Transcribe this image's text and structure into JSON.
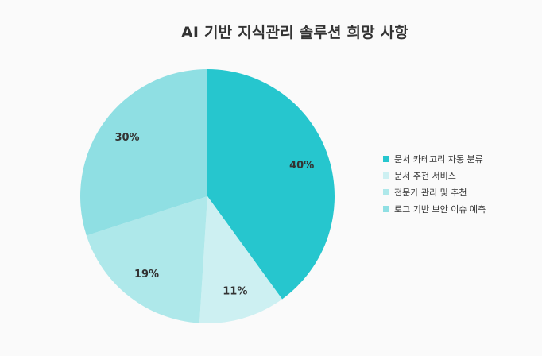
{
  "chart_data": {
    "type": "pie",
    "title": "AI 기반 지식관리 솔루션 희망 사항",
    "categories": [
      "문서 카테고리 자동 분류",
      "문서 추천 서비스",
      "전문가 관리 및 추천",
      "로그 기반 보안 이슈 예측"
    ],
    "values": [
      40,
      11,
      19,
      30
    ],
    "value_labels": [
      "40%",
      "11%",
      "19%",
      "30%"
    ],
    "colors": [
      "#26c6ce",
      "#cdf0f2",
      "#aee8ea",
      "#8fdfe3"
    ],
    "legend_position": "right"
  }
}
